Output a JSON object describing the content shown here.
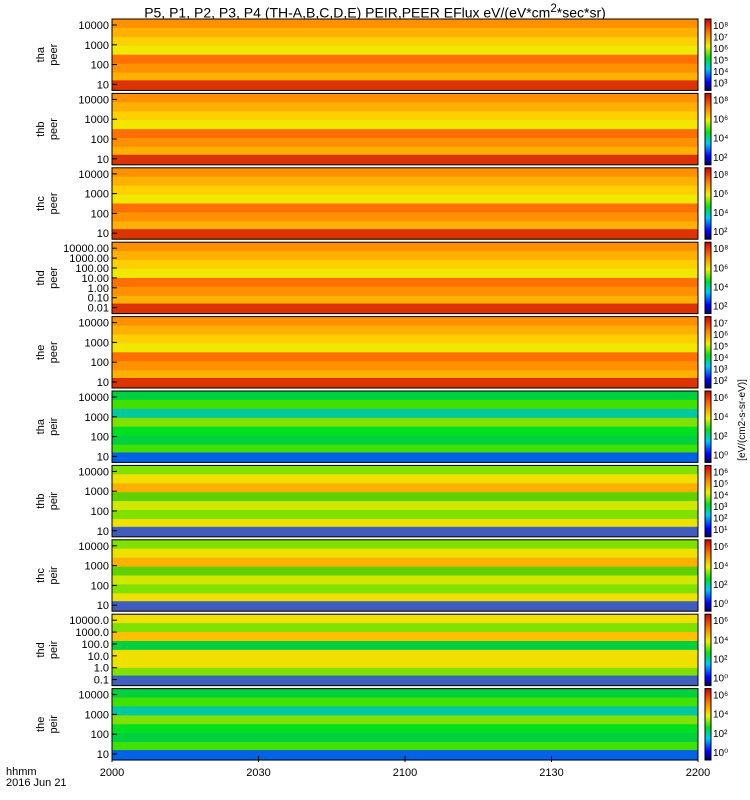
{
  "title": {
    "prefix": "P5, P1, P2, P3, P4 (TH-A,B,C,D,E) PEIR,PEER EFlux eV/(eV*cm",
    "sup": "2",
    "suffix": "*sec*sr)"
  },
  "x_axis": {
    "corner_label_1": "hhmm",
    "corner_label_2": "2016 Jun 21",
    "ticks": [
      "2000",
      "2030",
      "2100",
      "2130",
      "2200"
    ]
  },
  "colorbar_unit_label": "[eV/(cm2-s-sr-eV)]",
  "colors": {
    "background": "#ffffff",
    "frame": "#000000",
    "spectrum_low": "#00e020",
    "spectrum_mid": "#f0e000",
    "spectrum_high": "#e00000",
    "fill_value": "#000000"
  },
  "chart_data": {
    "type": "heatmap",
    "xlabel": "hhmm",
    "xrange": [
      "2000",
      "2200"
    ],
    "color_scale": "log",
    "panels": [
      {
        "probe": "tha",
        "species": "peer",
        "ylabel": [
          "tha",
          "peer"
        ],
        "yticks": [
          "10000",
          "1000",
          "100",
          "10"
        ],
        "cbar_ticks": [
          "10^8",
          "10^7",
          "10^6",
          "10^5",
          "10^4",
          "10^3"
        ],
        "dominant_level": "high"
      },
      {
        "probe": "thb",
        "species": "peer",
        "ylabel": [
          "thb",
          "peer"
        ],
        "yticks": [
          "10000",
          "1000",
          "100",
          "10"
        ],
        "cbar_ticks": [
          "10^8",
          "10^6",
          "10^4",
          "10^2"
        ],
        "dominant_level": "high"
      },
      {
        "probe": "thc",
        "species": "peer",
        "ylabel": [
          "thc",
          "peer"
        ],
        "yticks": [
          "10000",
          "1000",
          "100",
          "10"
        ],
        "cbar_ticks": [
          "10^8",
          "10^6",
          "10^4",
          "10^2"
        ],
        "dominant_level": "high"
      },
      {
        "probe": "thd",
        "species": "peer",
        "ylabel": [
          "thd",
          "peer"
        ],
        "yticks": [
          "10000.00",
          "1000.00",
          "100.00",
          "10.00",
          "1.00",
          "0.10",
          "0.01"
        ],
        "cbar_ticks": [
          "10^8",
          "10^6",
          "10^4",
          "10^2"
        ],
        "dominant_level": "high"
      },
      {
        "probe": "the",
        "species": "peer",
        "ylabel": [
          "the",
          "peer"
        ],
        "yticks": [
          "10000",
          "1000",
          "100",
          "10"
        ],
        "cbar_ticks": [
          "10^7",
          "10^6",
          "10^5",
          "10^4",
          "10^3",
          "10^2"
        ],
        "dominant_level": "high"
      },
      {
        "probe": "tha",
        "species": "peir",
        "ylabel": [
          "tha",
          "peir"
        ],
        "yticks": [
          "10000",
          "1000",
          "100",
          "10"
        ],
        "cbar_ticks": [
          "10^6",
          "10^4",
          "10^2",
          "10^0"
        ],
        "dominant_level": "low"
      },
      {
        "probe": "thb",
        "species": "peir",
        "ylabel": [
          "thb",
          "peir"
        ],
        "yticks": [
          "10000",
          "1000",
          "100",
          "10"
        ],
        "cbar_ticks": [
          "10^6",
          "10^5",
          "10^4",
          "10^3",
          "10^2",
          "10^1"
        ],
        "dominant_level": "mid"
      },
      {
        "probe": "thc",
        "species": "peir",
        "ylabel": [
          "thc",
          "peir"
        ],
        "yticks": [
          "10000",
          "1000",
          "100",
          "10"
        ],
        "cbar_ticks": [
          "10^6",
          "10^4",
          "10^2",
          "10^0"
        ],
        "dominant_level": "mid"
      },
      {
        "probe": "thd",
        "species": "peir",
        "ylabel": [
          "thd",
          "peir"
        ],
        "yticks": [
          "10000.0",
          "1000.0",
          "100.0",
          "10.0",
          "1.0",
          "0.1"
        ],
        "cbar_ticks": [
          "10^6",
          "10^4",
          "10^2",
          "10^0"
        ],
        "dominant_level": "mixed"
      },
      {
        "probe": "the",
        "species": "peir",
        "ylabel": [
          "the",
          "peir"
        ],
        "yticks": [
          "10000",
          "1000",
          "100",
          "10"
        ],
        "cbar_ticks": [
          "10^6",
          "10^4",
          "10^2",
          "10^0"
        ],
        "dominant_level": "low"
      }
    ]
  }
}
